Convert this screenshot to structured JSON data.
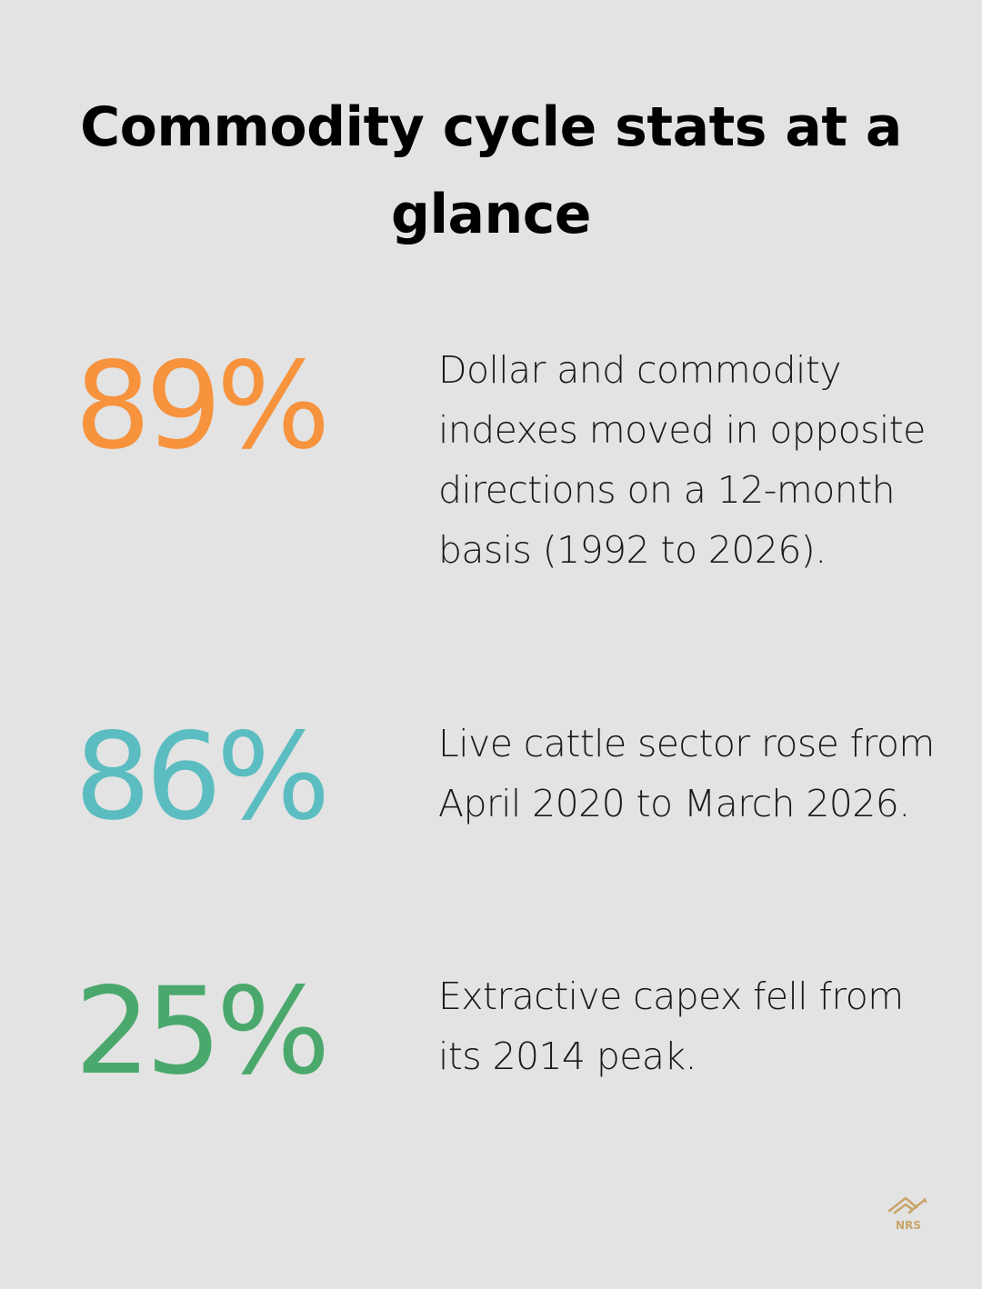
{
  "title": "Commodity cycle stats at a glance",
  "stats": [
    {
      "value": "89%",
      "color": "#f7923d",
      "description": "Dollar and commodity indexes moved in opposite directions on a 12-month basis (1992 to 2026)."
    },
    {
      "value": "86%",
      "color": "#5bbdc1",
      "description": "Live cattle sector rose from April 2020 to March 2026."
    },
    {
      "value": "25%",
      "color": "#4aa86c",
      "description": "Extractive capex fell from its 2014 peak."
    }
  ],
  "logo": {
    "text": "NRS",
    "icon": "house-chart-logo-icon",
    "color": "#c9a46a"
  }
}
